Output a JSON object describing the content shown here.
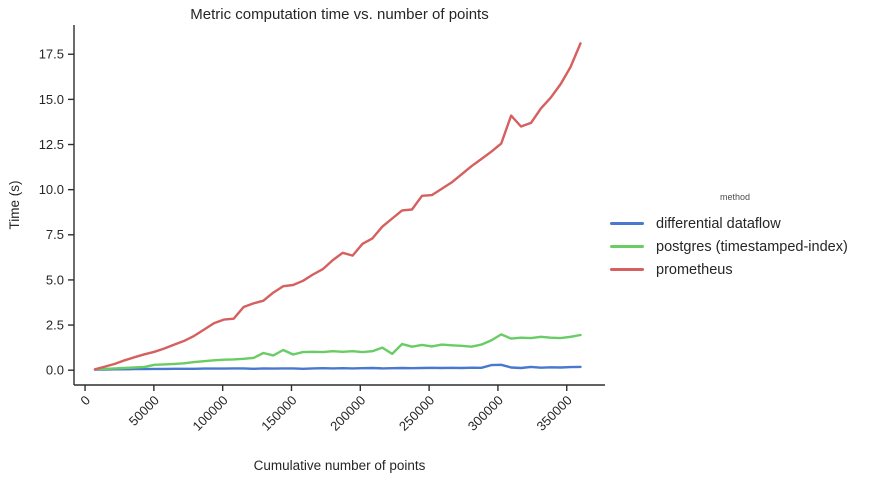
{
  "chart_data": {
    "type": "line",
    "title": "Metric computation time vs. number of points",
    "xlabel": "Cumulative number of points",
    "ylabel": "Time (s)",
    "legend_title": "method",
    "legend_position": "outside-right",
    "grid": false,
    "axis_color": "#2e2e2e",
    "text_color": "#262626",
    "xlim": [
      -8030,
      377800
    ],
    "ylim": [
      -0.82,
      19.12
    ],
    "x_ticks": [
      0,
      50000,
      100000,
      150000,
      200000,
      250000,
      300000,
      350000
    ],
    "x_tick_labels": [
      "0",
      "50000",
      "100000",
      "150000",
      "200000",
      "250000",
      "300000",
      "350000"
    ],
    "y_ticks": [
      0.0,
      2.5,
      5.0,
      7.5,
      10.0,
      12.5,
      15.0,
      17.5
    ],
    "y_tick_labels": [
      "0.0",
      "2.5",
      "5.0",
      "7.5",
      "10.0",
      "12.5",
      "15.0",
      "17.5"
    ],
    "x": [
      7200,
      14400,
      21600,
      28800,
      36000,
      43200,
      50400,
      57600,
      64800,
      72000,
      79200,
      86400,
      93600,
      100800,
      108000,
      115200,
      122400,
      129600,
      136800,
      144000,
      151200,
      158400,
      165600,
      172800,
      180000,
      187200,
      194400,
      201600,
      208800,
      216000,
      223200,
      230400,
      237600,
      244800,
      252000,
      259200,
      266400,
      273600,
      280800,
      288000,
      295200,
      302400,
      309600,
      316800,
      324000,
      331200,
      338400,
      345600,
      352800,
      360000
    ],
    "series": [
      {
        "name": "differential dataflow",
        "color": "#4878d0",
        "values": [
          0.03,
          0.04,
          0.05,
          0.05,
          0.06,
          0.06,
          0.07,
          0.07,
          0.08,
          0.08,
          0.08,
          0.09,
          0.09,
          0.09,
          0.1,
          0.1,
          0.08,
          0.1,
          0.09,
          0.1,
          0.1,
          0.08,
          0.1,
          0.11,
          0.1,
          0.11,
          0.1,
          0.11,
          0.12,
          0.1,
          0.11,
          0.12,
          0.11,
          0.12,
          0.13,
          0.12,
          0.13,
          0.12,
          0.14,
          0.13,
          0.28,
          0.3,
          0.15,
          0.12,
          0.18,
          0.14,
          0.16,
          0.15,
          0.17,
          0.18
        ]
      },
      {
        "name": "postgres (timestamped-index)",
        "color": "#6acc64",
        "values": [
          0.05,
          0.07,
          0.1,
          0.12,
          0.15,
          0.18,
          0.3,
          0.32,
          0.35,
          0.38,
          0.45,
          0.5,
          0.55,
          0.58,
          0.6,
          0.63,
          0.68,
          0.95,
          0.82,
          1.12,
          0.87,
          1.0,
          1.02,
          1.0,
          1.05,
          1.02,
          1.05,
          1.0,
          1.05,
          1.25,
          0.9,
          1.45,
          1.3,
          1.4,
          1.32,
          1.42,
          1.38,
          1.35,
          1.3,
          1.42,
          1.65,
          1.98,
          1.75,
          1.8,
          1.78,
          1.85,
          1.8,
          1.78,
          1.85,
          1.95
        ]
      },
      {
        "name": "prometheus",
        "color": "#d65f5f",
        "values": [
          0.05,
          0.2,
          0.35,
          0.55,
          0.72,
          0.88,
          1.02,
          1.2,
          1.42,
          1.62,
          1.9,
          2.25,
          2.6,
          2.8,
          2.85,
          3.5,
          3.7,
          3.85,
          4.3,
          4.65,
          4.72,
          4.95,
          5.3,
          5.6,
          6.1,
          6.5,
          6.35,
          7.0,
          7.3,
          7.95,
          8.4,
          8.85,
          8.9,
          9.66,
          9.7,
          10.05,
          10.4,
          10.85,
          11.3,
          11.7,
          12.1,
          12.55,
          14.1,
          13.5,
          13.7,
          14.5,
          15.1,
          15.85,
          16.8,
          18.1
        ]
      }
    ]
  }
}
